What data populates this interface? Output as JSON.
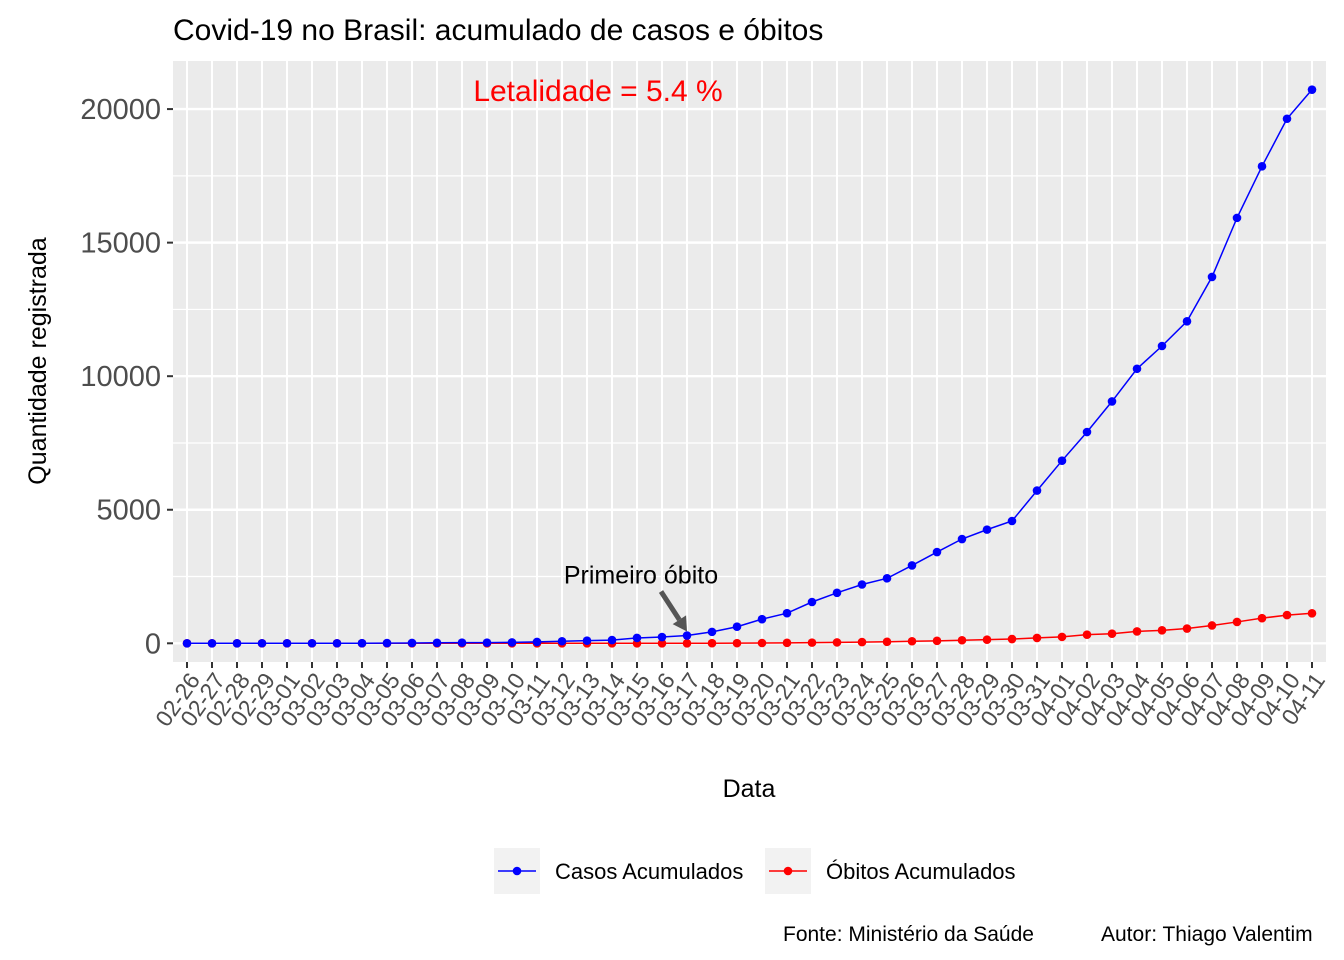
{
  "chart_data": {
    "type": "line",
    "title": "Covid-19 no Brasil: acumulado de casos e óbitos",
    "xlabel": "Data",
    "ylabel": "Quantidade registrada",
    "ylim": [
      -700,
      21800
    ],
    "yticks": [
      0,
      5000,
      10000,
      15000,
      20000
    ],
    "grid": true,
    "legend_position": "bottom",
    "categories": [
      "02-26",
      "02-27",
      "02-28",
      "02-29",
      "03-01",
      "03-02",
      "03-03",
      "03-04",
      "03-05",
      "03-06",
      "03-07",
      "03-08",
      "03-09",
      "03-10",
      "03-11",
      "03-12",
      "03-13",
      "03-14",
      "03-15",
      "03-16",
      "03-17",
      "03-18",
      "03-19",
      "03-20",
      "03-21",
      "03-22",
      "03-23",
      "03-24",
      "03-25",
      "03-26",
      "03-27",
      "03-28",
      "03-29",
      "03-30",
      "03-31",
      "04-01",
      "04-02",
      "04-03",
      "04-04",
      "04-05",
      "04-06",
      "04-07",
      "04-08",
      "04-09",
      "04-10",
      "04-11"
    ],
    "series": [
      {
        "name": "Casos Acumulados",
        "color": "#0000ff",
        "values": [
          1,
          1,
          1,
          2,
          2,
          2,
          2,
          3,
          8,
          13,
          19,
          25,
          25,
          34,
          52,
          77,
          98,
          121,
          200,
          234,
          291,
          428,
          621,
          904,
          1128,
          1546,
          1891,
          2201,
          2433,
          2915,
          3417,
          3904,
          4256,
          4579,
          5717,
          6836,
          7910,
          9056,
          10278,
          11130,
          12056,
          13717,
          15927,
          17857,
          19638,
          20727
        ]
      },
      {
        "name": "Óbitos Acumulados",
        "color": "#ff0000",
        "values": [
          0,
          0,
          0,
          0,
          0,
          0,
          0,
          0,
          0,
          0,
          0,
          0,
          0,
          0,
          0,
          0,
          0,
          0,
          0,
          0,
          1,
          4,
          6,
          11,
          18,
          25,
          34,
          46,
          57,
          77,
          92,
          114,
          136,
          159,
          201,
          240,
          324,
          359,
          445,
          486,
          553,
          667,
          800,
          941,
          1056,
          1124
        ]
      }
    ],
    "annotations": {
      "lethality_text": "Letalidade = 5.4 %",
      "first_death_label": "Primeiro óbito",
      "first_death_category": "03-17"
    },
    "caption": {
      "source": "Fonte: Ministério da Saúde",
      "author": "Autor: Thiago Valentim"
    }
  }
}
